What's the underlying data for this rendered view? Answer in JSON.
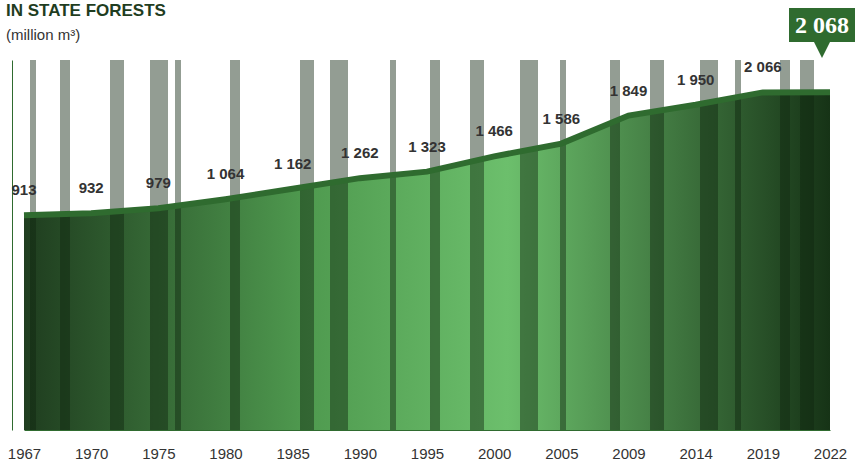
{
  "chart_data": {
    "type": "area",
    "title": "IN STATE FORESTS",
    "subtitle": "(million m³)",
    "categories": [
      "1967",
      "1970",
      "1975",
      "1980",
      "1985",
      "1990",
      "1995",
      "2000",
      "2005",
      "2009",
      "2014",
      "2019",
      "2022"
    ],
    "values": [
      913,
      932,
      979,
      1064,
      1162,
      1262,
      1323,
      1466,
      1586,
      1849,
      1950,
      2066,
      2068
    ],
    "value_labels": [
      "913",
      "932",
      "979",
      "1 064",
      "1 162",
      "1 262",
      "1 323",
      "1 466",
      "1 586",
      "1 849",
      "1 950",
      "2 066",
      "2 068"
    ],
    "color": "#2f6b2f",
    "ylim": [
      -1100,
      2370
    ],
    "data_labels": true,
    "tick_labels": "x",
    "grid": false
  }
}
